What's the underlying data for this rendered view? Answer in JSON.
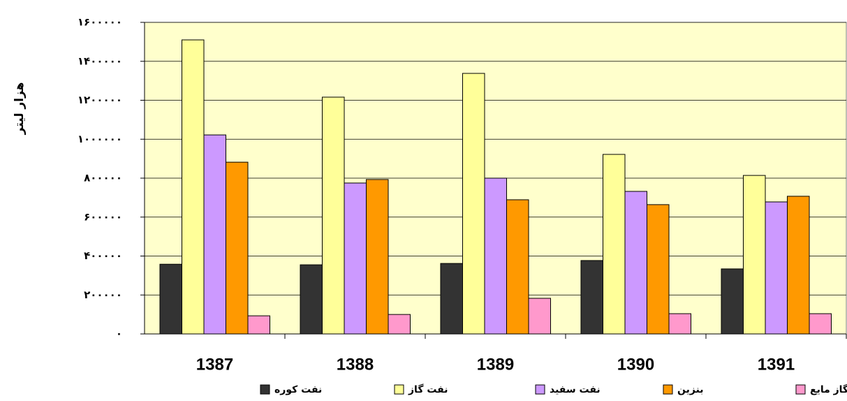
{
  "chart_data": {
    "type": "bar",
    "y_label": "هزار لیتر",
    "categories": [
      "1387",
      "1388",
      "1389",
      "1390",
      "1391"
    ],
    "series": [
      {
        "name": "نفت کوره",
        "color": "#333333",
        "values": [
          358000,
          355000,
          362000,
          377000,
          334000
        ]
      },
      {
        "name": "نفت گاز",
        "color": "#ffff99",
        "values": [
          1510000,
          1216000,
          1338000,
          922000,
          814000
        ]
      },
      {
        "name": "نفت سفید",
        "color": "#cc99ff",
        "values": [
          1022000,
          775000,
          800000,
          732000,
          678000
        ]
      },
      {
        "name": "بنزین",
        "color": "#ff9900",
        "values": [
          882000,
          793000,
          689000,
          664000,
          707000
        ]
      },
      {
        "name": "گاز مایع",
        "color": "#ff99cc",
        "values": [
          93000,
          100000,
          183000,
          104000,
          104000
        ]
      }
    ],
    "ylim": [
      0,
      1600000
    ],
    "yticks": [
      {
        "value": 0,
        "label": "۰"
      },
      {
        "value": 200000,
        "label": "۲۰۰۰۰۰"
      },
      {
        "value": 400000,
        "label": "۴۰۰۰۰۰"
      },
      {
        "value": 600000,
        "label": "۶۰۰۰۰۰"
      },
      {
        "value": 800000,
        "label": "۸۰۰۰۰۰"
      },
      {
        "value": 1000000,
        "label": "۱۰۰۰۰۰۰"
      },
      {
        "value": 1200000,
        "label": "۱۲۰۰۰۰۰"
      },
      {
        "value": 1400000,
        "label": "۱۴۰۰۰۰۰"
      },
      {
        "value": 1600000,
        "label": "۱۶۰۰۰۰۰"
      }
    ],
    "grid": true,
    "plot_background": "#ffffcc"
  }
}
